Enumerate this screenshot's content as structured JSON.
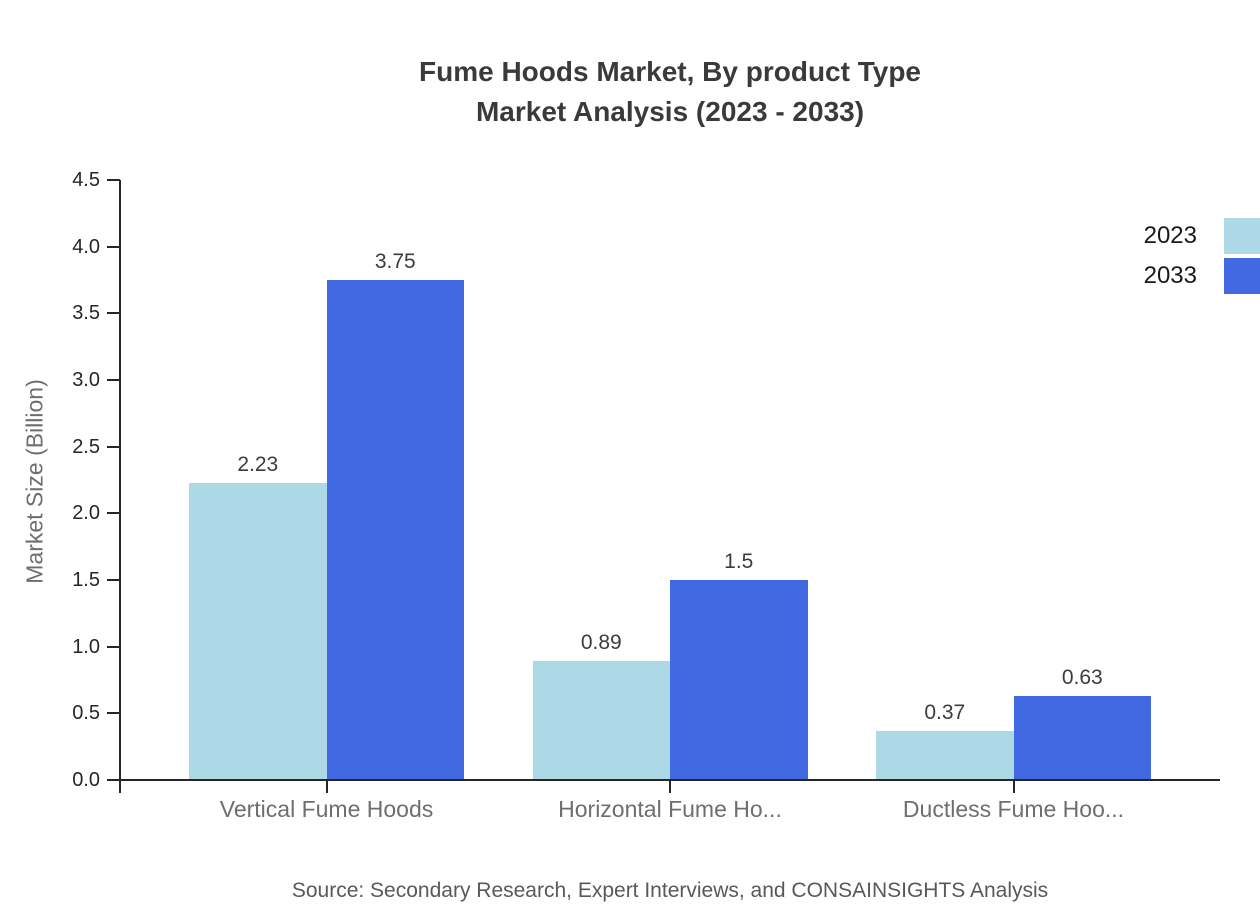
{
  "title": {
    "line1": "Fume Hoods Market, By product Type",
    "line2": "Market Analysis (2023 - 2033)"
  },
  "chart_data": {
    "type": "bar",
    "categories": [
      "Vertical Fume Hoods",
      "Horizontal Fume Ho...",
      "Ductless Fume Hoo..."
    ],
    "series": [
      {
        "name": "2023",
        "color": "#add8e6",
        "values": [
          2.23,
          0.89,
          0.37
        ],
        "labels": [
          "2.23",
          "0.89",
          "0.37"
        ]
      },
      {
        "name": "2033",
        "color": "#4169e1",
        "values": [
          3.75,
          1.5,
          0.63
        ],
        "labels": [
          "3.75",
          "1.5",
          "0.63"
        ]
      }
    ],
    "xlabel": "",
    "ylabel": "Market Size (Billion)",
    "ylim": [
      0,
      4.5
    ],
    "yticks": [
      "0.0",
      "0.5",
      "1.0",
      "1.5",
      "2.0",
      "2.5",
      "3.0",
      "3.5",
      "4.0",
      "4.5"
    ],
    "grid": false,
    "legend_position": "top-right"
  },
  "source": "Source: Secondary Research, Expert Interviews, and CONSAINSIGHTS Analysis",
  "colors": {
    "series_2023": "#add8e6",
    "series_2033": "#4169e1",
    "axis": "#262626",
    "title_text": "#3a3a3a",
    "muted_text": "#6e6e6e",
    "value_text": "#3c3c3c",
    "source_text": "#595959",
    "background": "#ffffff"
  }
}
